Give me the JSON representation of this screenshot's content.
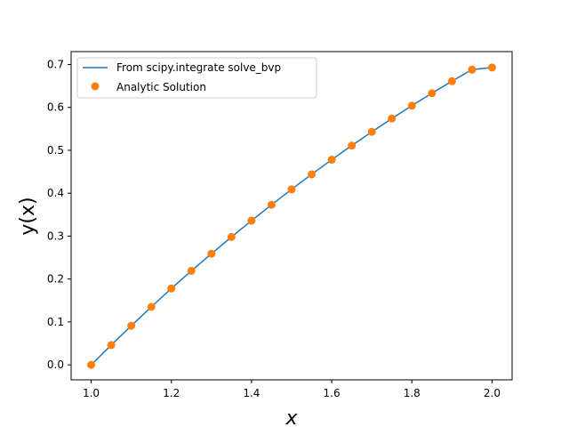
{
  "chart_data": {
    "type": "line",
    "title": "",
    "xlabel": "x",
    "ylabel": "y(x)",
    "xlim": [
      0.95,
      2.05
    ],
    "ylim": [
      -0.035,
      0.73
    ],
    "x_ticks": [
      1.0,
      1.2,
      1.4,
      1.6,
      1.8,
      2.0
    ],
    "x_tick_labels": [
      "1.0",
      "1.2",
      "1.4",
      "1.6",
      "1.8",
      "2.0"
    ],
    "y_ticks": [
      0.0,
      0.1,
      0.2,
      0.3,
      0.4,
      0.5,
      0.6,
      0.7
    ],
    "y_tick_labels": [
      "0.0",
      "0.1",
      "0.2",
      "0.3",
      "0.4",
      "0.5",
      "0.6",
      "0.7"
    ],
    "grid": false,
    "legend_position": "top-left",
    "x": [
      1.0,
      1.05,
      1.1,
      1.15,
      1.2,
      1.25,
      1.3,
      1.35,
      1.4,
      1.45,
      1.5,
      1.55,
      1.6,
      1.65,
      1.7,
      1.75,
      1.8,
      1.85,
      1.9,
      1.95,
      2.0
    ],
    "series": [
      {
        "name": "From scipy.integrate solve_bvp",
        "style": "line",
        "color": "#1f77b4",
        "values": [
          0.0,
          0.046,
          0.091,
          0.135,
          0.178,
          0.219,
          0.259,
          0.298,
          0.336,
          0.373,
          0.409,
          0.444,
          0.478,
          0.511,
          0.543,
          0.574,
          0.604,
          0.633,
          0.661,
          0.688,
          0.693
        ]
      },
      {
        "name": "Analytic Solution",
        "style": "markers",
        "color": "#ff7f0e",
        "values": [
          0.0,
          0.046,
          0.091,
          0.135,
          0.178,
          0.219,
          0.259,
          0.298,
          0.336,
          0.373,
          0.409,
          0.444,
          0.478,
          0.511,
          0.543,
          0.574,
          0.604,
          0.633,
          0.661,
          0.688,
          0.693
        ]
      }
    ]
  }
}
